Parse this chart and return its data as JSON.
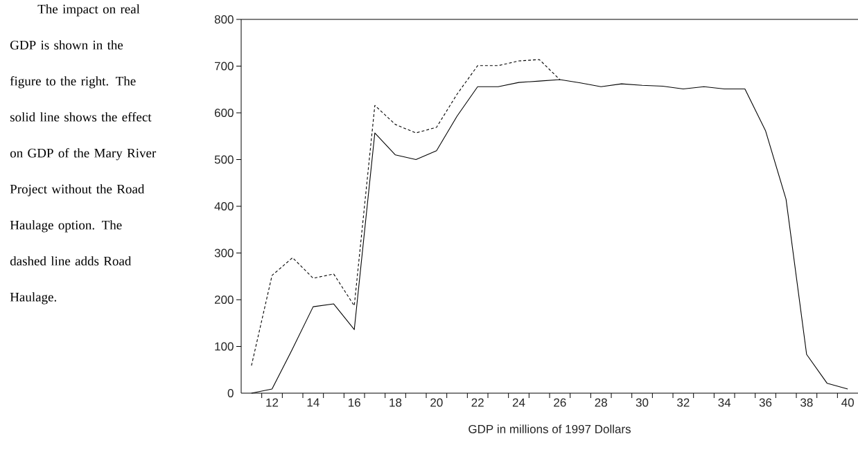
{
  "chart_data": {
    "type": "line",
    "annotations": [
      "The impact on real GDP is shown in the figure to the right. The solid line shows the effect on GDP of the Mary River Project without the Road Haulage option. The dashed line adds Road Haulage."
    ],
    "xlabel": "GDP in millions of 1997 Dollars",
    "x": [
      11,
      12,
      13,
      14,
      15,
      16,
      17,
      18,
      19,
      20,
      21,
      22,
      23,
      24,
      25,
      26,
      27,
      28,
      29,
      30,
      31,
      32,
      33,
      34,
      35,
      36,
      37,
      38,
      39,
      40
    ],
    "series": [
      {
        "color": "#000000",
        "line_style": "solid",
        "values": [
          0,
          9,
          95,
          185,
          191,
          136,
          557,
          510,
          500,
          519,
          593,
          656,
          656,
          665,
          668,
          671,
          664,
          656,
          662,
          659,
          657,
          651,
          656,
          651,
          651,
          562,
          415,
          83,
          21,
          9
        ]
      },
      {
        "color": "#000000",
        "line_style": "dashed",
        "values": [
          59,
          252,
          290,
          246,
          255,
          187,
          616,
          575,
          557,
          569,
          640,
          701,
          701,
          711,
          714,
          671,
          null,
          null,
          null,
          null,
          null,
          null,
          null,
          null,
          null,
          null,
          null,
          null,
          null,
          null
        ]
      }
    ],
    "xlim": [
      10.5,
      40.5
    ],
    "xticks": [
      {
        "value": 11.5,
        "label": null
      },
      12,
      {
        "value": 12.5,
        "label": null
      },
      {
        "value": 13.5,
        "label": null
      },
      14,
      {
        "value": 14.5,
        "label": null
      },
      {
        "value": 15.5,
        "label": null
      },
      16,
      {
        "value": 16.5,
        "label": null
      },
      {
        "value": 17.5,
        "label": null
      },
      18,
      {
        "value": 18.5,
        "label": null
      },
      {
        "value": 19.5,
        "label": null
      },
      20,
      {
        "value": 20.5,
        "label": null
      },
      {
        "value": 21.5,
        "label": null
      },
      22,
      {
        "value": 22.5,
        "label": null
      },
      {
        "value": 23.5,
        "label": null
      },
      24,
      {
        "value": 24.5,
        "label": null
      },
      {
        "value": 25.5,
        "label": null
      },
      26,
      {
        "value": 26.5,
        "label": null
      },
      {
        "value": 27.5,
        "label": null
      },
      28,
      {
        "value": 28.5,
        "label": null
      },
      {
        "value": 29.5,
        "label": null
      },
      30,
      {
        "value": 30.5,
        "label": null
      },
      {
        "value": 31.5,
        "label": null
      },
      32,
      {
        "value": 32.5,
        "label": null
      },
      {
        "value": 33.5,
        "label": null
      },
      34,
      {
        "value": 34.5,
        "label": null
      },
      {
        "value": 35.5,
        "label": null
      },
      36,
      {
        "value": 36.5,
        "label": null
      },
      {
        "value": 37.5,
        "label": null
      },
      38,
      {
        "value": 38.5,
        "label": null
      },
      {
        "value": 39.5,
        "label": null
      },
      40
    ],
    "ylim": [
      0,
      800
    ],
    "yticks": [
      0,
      100,
      200,
      300,
      400,
      500,
      600,
      700,
      800
    ]
  }
}
